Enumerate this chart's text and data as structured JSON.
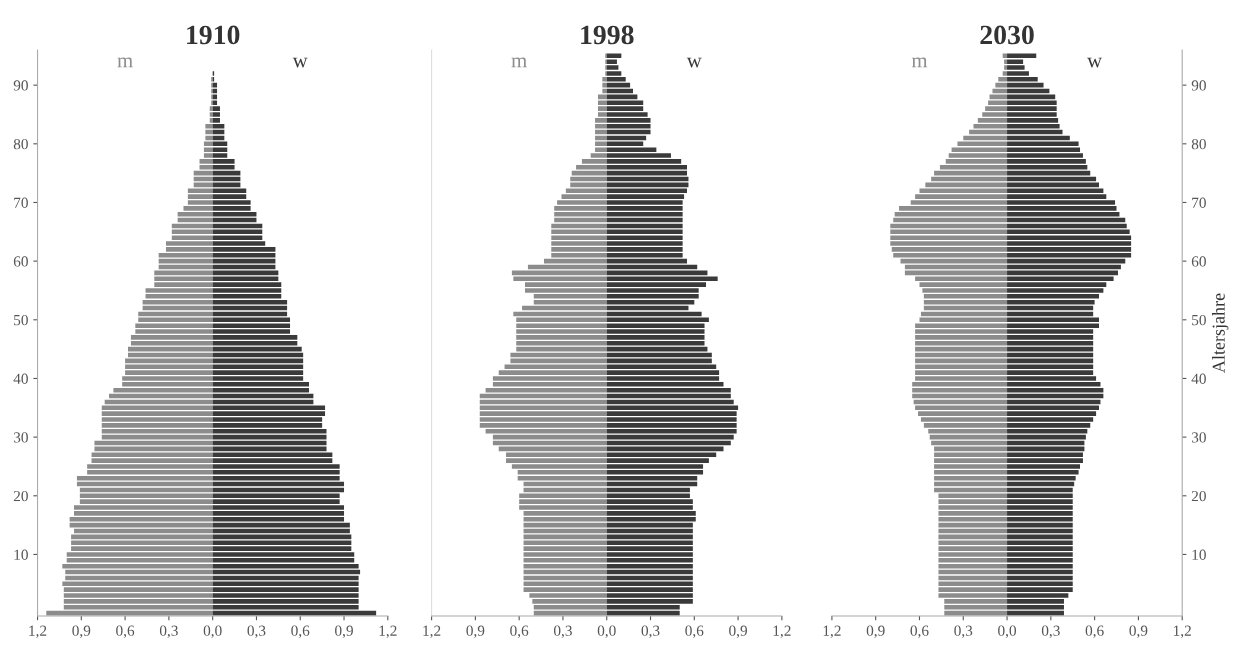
{
  "chart_data": [
    {
      "type": "bar",
      "orientation": "horizontal",
      "title": "1910",
      "stacked": true,
      "legend": false,
      "grid": false,
      "x": [
        0,
        1,
        2,
        3,
        4,
        5,
        6,
        7,
        8,
        9,
        10,
        11,
        12,
        13,
        14,
        15,
        16,
        17,
        18,
        19,
        20,
        21,
        22,
        23,
        24,
        25,
        26,
        27,
        28,
        29,
        30,
        31,
        32,
        33,
        34,
        35,
        36,
        37,
        38,
        39,
        40,
        41,
        42,
        43,
        44,
        45,
        46,
        47,
        48,
        49,
        50,
        51,
        52,
        53,
        54,
        55,
        56,
        57,
        58,
        59,
        60,
        61,
        62,
        63,
        64,
        65,
        66,
        67,
        68,
        69,
        70,
        71,
        72,
        73,
        74,
        75,
        76,
        77,
        78,
        79,
        80,
        81,
        82,
        83,
        84,
        85,
        86,
        87,
        88,
        89,
        90,
        91,
        92,
        93,
        94,
        95
      ],
      "xlim": [
        -1.2,
        1.2
      ],
      "xticks": [
        {
          "value": -1.2,
          "label": "1,2"
        },
        {
          "value": -0.9,
          "label": "0,9"
        },
        {
          "value": -0.6,
          "label": "0,6"
        },
        {
          "value": -0.3,
          "label": "0,3"
        },
        {
          "value": 0,
          "label": "0,0"
        },
        {
          "value": 0.3,
          "label": "0,3"
        },
        {
          "value": 0.6,
          "label": "0,6"
        },
        {
          "value": 0.9,
          "label": "0,9"
        },
        {
          "value": 1.2,
          "label": "1,2"
        }
      ],
      "ylim": [
        -0.5,
        96
      ],
      "yticks": [
        10,
        20,
        30,
        40,
        50,
        60,
        70,
        80,
        90
      ],
      "series": [
        {
          "name": "m",
          "color": "#8c8c8c",
          "values": [
            -1.14,
            -1.02,
            -1.02,
            -1.02,
            -1.02,
            -1.03,
            -1.01,
            -1.01,
            -1.03,
            -1.0,
            -1.0,
            -0.97,
            -0.97,
            -0.97,
            -0.95,
            -0.98,
            -0.98,
            -0.95,
            -0.95,
            -0.91,
            -0.91,
            -0.91,
            -0.93,
            -0.93,
            -0.86,
            -0.86,
            -0.83,
            -0.83,
            -0.81,
            -0.81,
            -0.76,
            -0.76,
            -0.76,
            -0.76,
            -0.76,
            -0.76,
            -0.74,
            -0.71,
            -0.68,
            -0.62,
            -0.62,
            -0.6,
            -0.6,
            -0.6,
            -0.58,
            -0.58,
            -0.56,
            -0.56,
            -0.53,
            -0.53,
            -0.51,
            -0.51,
            -0.48,
            -0.48,
            -0.46,
            -0.46,
            -0.4,
            -0.4,
            -0.4,
            -0.37,
            -0.37,
            -0.37,
            -0.32,
            -0.32,
            -0.28,
            -0.28,
            -0.28,
            -0.24,
            -0.24,
            -0.2,
            -0.17,
            -0.17,
            -0.17,
            -0.13,
            -0.13,
            -0.13,
            -0.09,
            -0.09,
            -0.06,
            -0.06,
            -0.06,
            -0.05,
            -0.05,
            -0.05,
            -0.02,
            -0.02,
            -0.02,
            -0.01,
            -0.01,
            -0.01,
            -0.01,
            -0.01,
            0,
            0,
            0,
            0
          ]
        },
        {
          "name": "w",
          "color": "#3a3a3a",
          "values": [
            1.12,
            1.0,
            1.0,
            1.0,
            1.0,
            1.0,
            1.0,
            1.01,
            1.0,
            0.97,
            0.97,
            0.95,
            0.95,
            0.95,
            0.94,
            0.94,
            0.9,
            0.9,
            0.9,
            0.87,
            0.87,
            0.9,
            0.9,
            0.87,
            0.87,
            0.87,
            0.82,
            0.82,
            0.78,
            0.78,
            0.78,
            0.78,
            0.75,
            0.75,
            0.77,
            0.77,
            0.69,
            0.69,
            0.66,
            0.66,
            0.62,
            0.62,
            0.62,
            0.62,
            0.62,
            0.61,
            0.58,
            0.58,
            0.53,
            0.53,
            0.53,
            0.51,
            0.51,
            0.51,
            0.47,
            0.47,
            0.47,
            0.45,
            0.45,
            0.43,
            0.43,
            0.43,
            0.43,
            0.36,
            0.34,
            0.34,
            0.34,
            0.3,
            0.3,
            0.26,
            0.26,
            0.23,
            0.23,
            0.19,
            0.19,
            0.19,
            0.15,
            0.15,
            0.1,
            0.1,
            0.1,
            0.08,
            0.08,
            0.08,
            0.05,
            0.05,
            0.05,
            0.03,
            0.03,
            0.03,
            0.03,
            0.01,
            0.01,
            0,
            0,
            0
          ]
        }
      ]
    },
    {
      "type": "bar",
      "orientation": "horizontal",
      "title": "1998",
      "stacked": true,
      "legend": false,
      "grid": false,
      "tick_labels": "x",
      "x": [
        0,
        1,
        2,
        3,
        4,
        5,
        6,
        7,
        8,
        9,
        10,
        11,
        12,
        13,
        14,
        15,
        16,
        17,
        18,
        19,
        20,
        21,
        22,
        23,
        24,
        25,
        26,
        27,
        28,
        29,
        30,
        31,
        32,
        33,
        34,
        35,
        36,
        37,
        38,
        39,
        40,
        41,
        42,
        43,
        44,
        45,
        46,
        47,
        48,
        49,
        50,
        51,
        52,
        53,
        54,
        55,
        56,
        57,
        58,
        59,
        60,
        61,
        62,
        63,
        64,
        65,
        66,
        67,
        68,
        69,
        70,
        71,
        72,
        73,
        74,
        75,
        76,
        77,
        78,
        79,
        80,
        81,
        82,
        83,
        84,
        85,
        86,
        87,
        88,
        89,
        90,
        91,
        92,
        93,
        94,
        95
      ],
      "ylim": [
        -0.5,
        96
      ],
      "xlim": [
        -1.2,
        1.2
      ],
      "xticks": [
        {
          "value": -1.2,
          "label": "1,2"
        },
        {
          "value": -0.9,
          "label": "0,9"
        },
        {
          "value": -0.6,
          "label": "0,6"
        },
        {
          "value": -0.3,
          "label": "0,3"
        },
        {
          "value": 0,
          "label": "0,0"
        },
        {
          "value": 0.3,
          "label": "0,3"
        },
        {
          "value": 0.6,
          "label": "0,6"
        },
        {
          "value": 0.9,
          "label": "0,9"
        },
        {
          "value": 1.2,
          "label": "1,2"
        }
      ],
      "series": [
        {
          "name": "m",
          "color": "#8c8c8c",
          "values": [
            -0.5,
            -0.5,
            -0.51,
            -0.53,
            -0.57,
            -0.57,
            -0.57,
            -0.57,
            -0.57,
            -0.57,
            -0.57,
            -0.57,
            -0.57,
            -0.57,
            -0.57,
            -0.57,
            -0.57,
            -0.57,
            -0.6,
            -0.6,
            -0.6,
            -0.57,
            -0.57,
            -0.61,
            -0.61,
            -0.65,
            -0.69,
            -0.69,
            -0.74,
            -0.78,
            -0.78,
            -0.83,
            -0.87,
            -0.87,
            -0.87,
            -0.87,
            -0.87,
            -0.87,
            -0.83,
            -0.78,
            -0.78,
            -0.74,
            -0.7,
            -0.66,
            -0.66,
            -0.62,
            -0.62,
            -0.62,
            -0.62,
            -0.62,
            -0.62,
            -0.64,
            -0.58,
            -0.5,
            -0.5,
            -0.56,
            -0.56,
            -0.64,
            -0.65,
            -0.54,
            -0.43,
            -0.38,
            -0.38,
            -0.38,
            -0.38,
            -0.38,
            -0.38,
            -0.36,
            -0.36,
            -0.36,
            -0.34,
            -0.31,
            -0.28,
            -0.25,
            -0.25,
            -0.24,
            -0.21,
            -0.17,
            -0.11,
            -0.08,
            -0.08,
            -0.08,
            -0.08,
            -0.08,
            -0.08,
            -0.06,
            -0.06,
            -0.06,
            -0.06,
            -0.03,
            -0.03,
            -0.03,
            -0.01,
            -0.01,
            -0.01,
            -0.01
          ]
        },
        {
          "name": "w",
          "color": "#3a3a3a",
          "values": [
            0.5,
            0.5,
            0.59,
            0.59,
            0.59,
            0.59,
            0.59,
            0.59,
            0.59,
            0.59,
            0.59,
            0.59,
            0.59,
            0.59,
            0.59,
            0.59,
            0.61,
            0.61,
            0.59,
            0.59,
            0.57,
            0.57,
            0.62,
            0.62,
            0.66,
            0.66,
            0.7,
            0.75,
            0.8,
            0.85,
            0.87,
            0.89,
            0.89,
            0.89,
            0.89,
            0.9,
            0.87,
            0.85,
            0.85,
            0.8,
            0.77,
            0.77,
            0.75,
            0.72,
            0.72,
            0.69,
            0.67,
            0.67,
            0.67,
            0.67,
            0.7,
            0.65,
            0.56,
            0.6,
            0.63,
            0.63,
            0.68,
            0.76,
            0.69,
            0.62,
            0.55,
            0.52,
            0.52,
            0.52,
            0.52,
            0.52,
            0.52,
            0.52,
            0.52,
            0.52,
            0.52,
            0.53,
            0.55,
            0.56,
            0.56,
            0.55,
            0.55,
            0.51,
            0.44,
            0.34,
            0.25,
            0.27,
            0.3,
            0.3,
            0.3,
            0.28,
            0.25,
            0.25,
            0.21,
            0.18,
            0.16,
            0.13,
            0.1,
            0.08,
            0.07,
            0.1
          ]
        }
      ]
    },
    {
      "type": "bar",
      "orientation": "horizontal",
      "title": "2030",
      "stacked": true,
      "ylabel": "Altersjahre",
      "legend": false,
      "grid": false,
      "x": [
        0,
        1,
        2,
        3,
        4,
        5,
        6,
        7,
        8,
        9,
        10,
        11,
        12,
        13,
        14,
        15,
        16,
        17,
        18,
        19,
        20,
        21,
        22,
        23,
        24,
        25,
        26,
        27,
        28,
        29,
        30,
        31,
        32,
        33,
        34,
        35,
        36,
        37,
        38,
        39,
        40,
        41,
        42,
        43,
        44,
        45,
        46,
        47,
        48,
        49,
        50,
        51,
        52,
        53,
        54,
        55,
        56,
        57,
        58,
        59,
        60,
        61,
        62,
        63,
        64,
        65,
        66,
        67,
        68,
        69,
        70,
        71,
        72,
        73,
        74,
        75,
        76,
        77,
        78,
        79,
        80,
        81,
        82,
        83,
        84,
        85,
        86,
        87,
        88,
        89,
        90,
        91,
        92,
        93,
        94,
        95
      ],
      "xlim": [
        -1.2,
        1.2
      ],
      "xticks": [
        {
          "value": -1.2,
          "label": "1,2"
        },
        {
          "value": -0.9,
          "label": "0,9"
        },
        {
          "value": -0.6,
          "label": "0,6"
        },
        {
          "value": -0.3,
          "label": "0,3"
        },
        {
          "value": 0,
          "label": "0,0"
        },
        {
          "value": 0.3,
          "label": "0,3"
        },
        {
          "value": 0.6,
          "label": "0,6"
        },
        {
          "value": 0.9,
          "label": "0,9"
        },
        {
          "value": 1.2,
          "label": "1,2"
        }
      ],
      "ylim": [
        -0.5,
        96
      ],
      "yticks": [
        10,
        20,
        30,
        40,
        50,
        60,
        70,
        80,
        90
      ],
      "series": [
        {
          "name": "m",
          "color": "#8c8c8c",
          "values": [
            -0.43,
            -0.43,
            -0.43,
            -0.47,
            -0.47,
            -0.47,
            -0.47,
            -0.47,
            -0.47,
            -0.47,
            -0.47,
            -0.47,
            -0.47,
            -0.47,
            -0.47,
            -0.47,
            -0.47,
            -0.47,
            -0.47,
            -0.47,
            -0.47,
            -0.5,
            -0.5,
            -0.5,
            -0.5,
            -0.5,
            -0.5,
            -0.5,
            -0.5,
            -0.52,
            -0.53,
            -0.54,
            -0.57,
            -0.59,
            -0.61,
            -0.63,
            -0.64,
            -0.65,
            -0.65,
            -0.65,
            -0.63,
            -0.63,
            -0.63,
            -0.63,
            -0.63,
            -0.63,
            -0.63,
            -0.63,
            -0.63,
            -0.63,
            -0.6,
            -0.59,
            -0.57,
            -0.57,
            -0.57,
            -0.58,
            -0.6,
            -0.63,
            -0.7,
            -0.7,
            -0.73,
            -0.78,
            -0.79,
            -0.8,
            -0.8,
            -0.8,
            -0.8,
            -0.78,
            -0.77,
            -0.74,
            -0.66,
            -0.63,
            -0.6,
            -0.56,
            -0.52,
            -0.5,
            -0.46,
            -0.42,
            -0.4,
            -0.38,
            -0.34,
            -0.3,
            -0.26,
            -0.23,
            -0.2,
            -0.17,
            -0.15,
            -0.13,
            -0.12,
            -0.1,
            -0.08,
            -0.06,
            -0.03,
            -0.02,
            -0.02,
            -0.03
          ]
        },
        {
          "name": "w",
          "color": "#3a3a3a",
          "values": [
            0.39,
            0.39,
            0.39,
            0.42,
            0.45,
            0.45,
            0.45,
            0.45,
            0.45,
            0.45,
            0.45,
            0.45,
            0.45,
            0.45,
            0.45,
            0.45,
            0.45,
            0.45,
            0.45,
            0.45,
            0.45,
            0.45,
            0.46,
            0.47,
            0.49,
            0.5,
            0.52,
            0.52,
            0.53,
            0.53,
            0.54,
            0.55,
            0.57,
            0.59,
            0.61,
            0.63,
            0.64,
            0.66,
            0.66,
            0.64,
            0.61,
            0.59,
            0.59,
            0.59,
            0.59,
            0.59,
            0.59,
            0.59,
            0.59,
            0.63,
            0.63,
            0.59,
            0.59,
            0.6,
            0.63,
            0.66,
            0.68,
            0.73,
            0.76,
            0.78,
            0.81,
            0.85,
            0.85,
            0.85,
            0.85,
            0.84,
            0.82,
            0.81,
            0.77,
            0.75,
            0.74,
            0.68,
            0.66,
            0.63,
            0.61,
            0.57,
            0.55,
            0.54,
            0.52,
            0.5,
            0.49,
            0.43,
            0.38,
            0.36,
            0.35,
            0.34,
            0.34,
            0.34,
            0.33,
            0.29,
            0.25,
            0.21,
            0.15,
            0.12,
            0.11,
            0.2
          ]
        }
      ]
    }
  ]
}
